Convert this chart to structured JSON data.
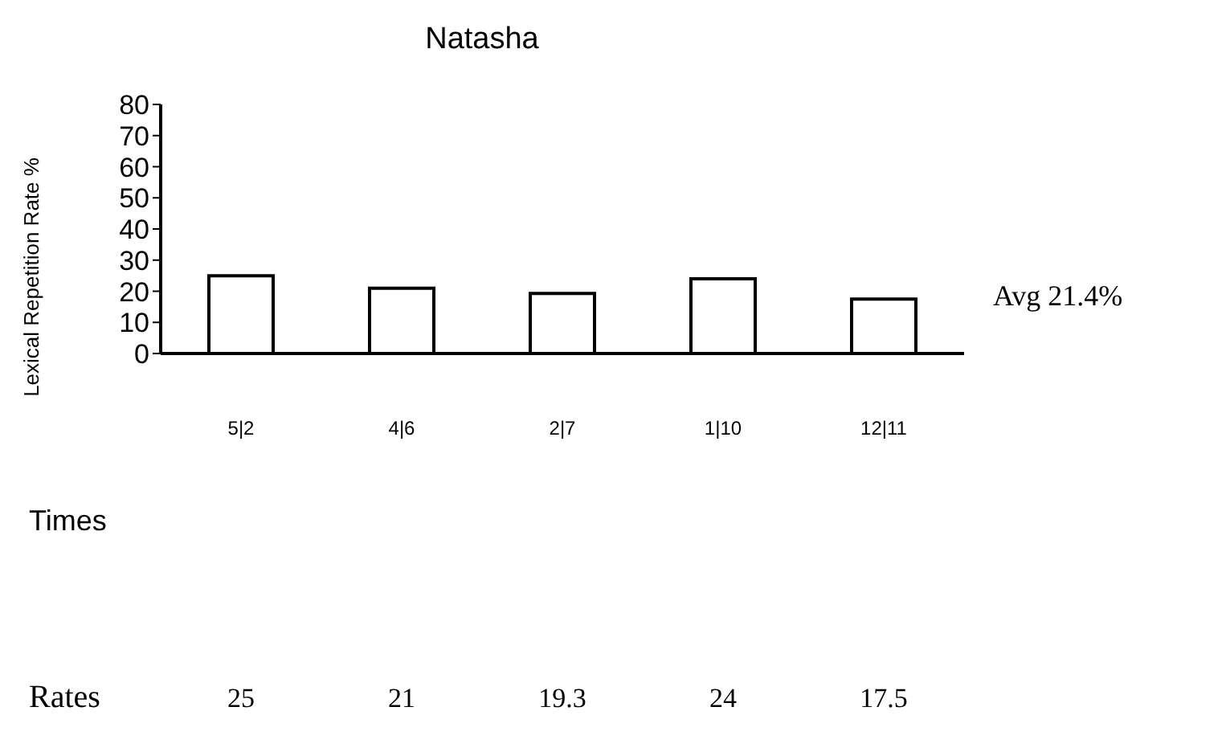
{
  "chart_data": {
    "type": "bar",
    "title": "Natasha",
    "xlabel": "Times",
    "ylabel": "Lexical Repetition Rate %",
    "categories": [
      "5|2",
      "4|6",
      "2|7",
      "1|10",
      "12|11"
    ],
    "values": [
      25,
      21,
      19.3,
      24,
      17.5
    ],
    "color": "#ffffff",
    "ylim": [
      0,
      80
    ],
    "yticks": [
      0,
      10,
      20,
      30,
      40,
      50,
      60,
      70,
      80
    ],
    "data_labels": true,
    "annotations": [
      "Rates",
      "Avg 21.4%"
    ]
  }
}
